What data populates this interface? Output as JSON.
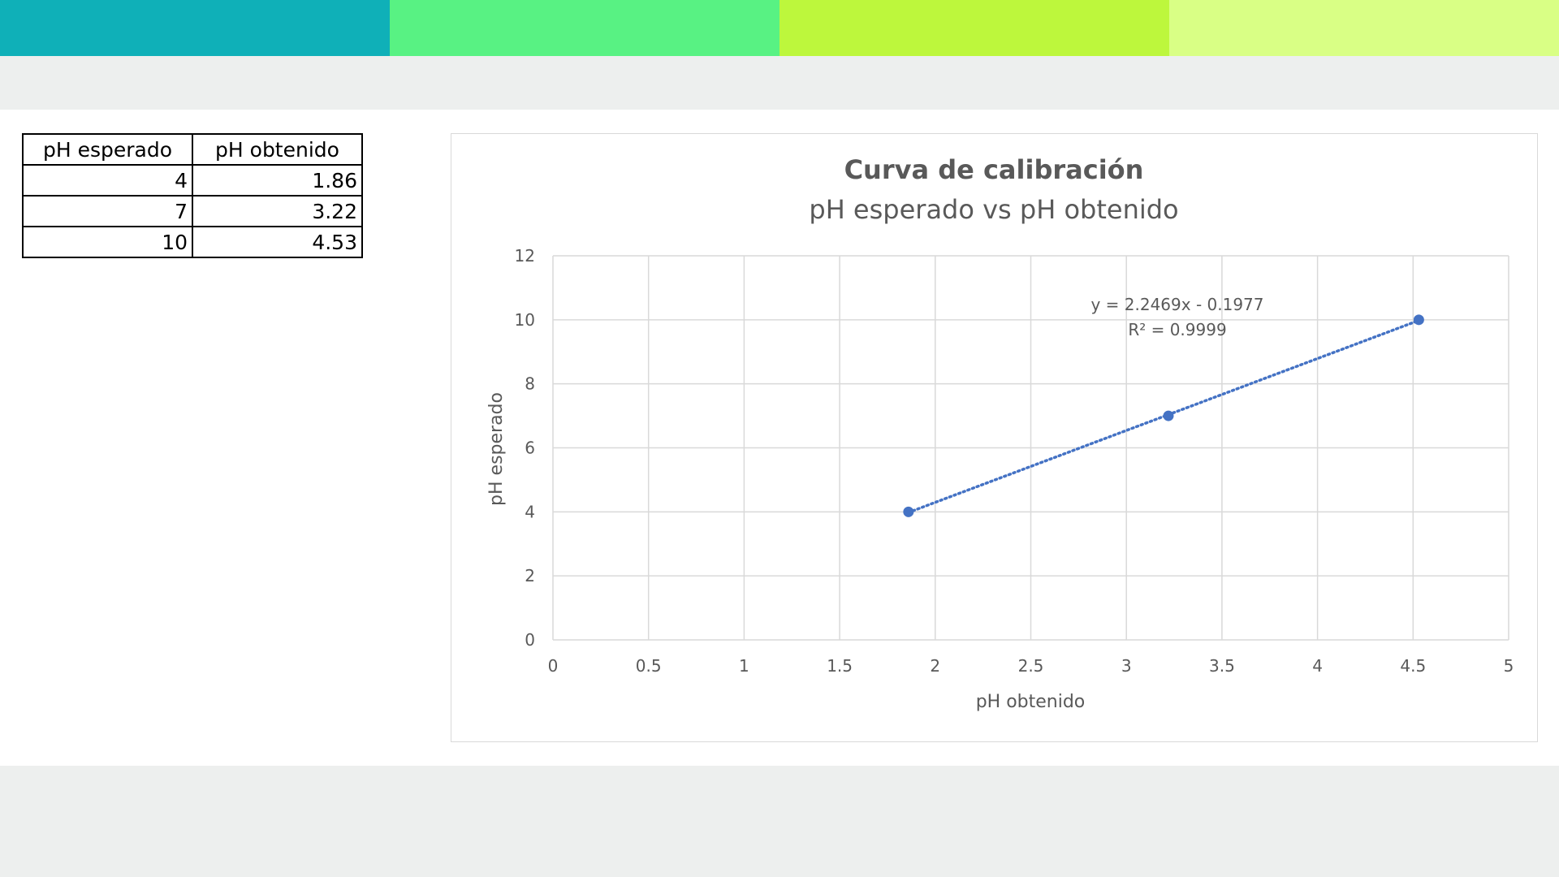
{
  "header": {
    "colors": [
      "#0fb0b8",
      "#58f283",
      "#bdf73c",
      "#d9ff85"
    ]
  },
  "table": {
    "headers": [
      "pH esperado",
      "pH obtenido"
    ],
    "rows": [
      [
        "4",
        "1.86"
      ],
      [
        "7",
        "3.22"
      ],
      [
        "10",
        "4.53"
      ]
    ]
  },
  "chart_data": {
    "type": "scatter",
    "title": "Curva de calibración",
    "subtitle": "pH esperado vs pH obtenido",
    "xlabel": "pH obtenido",
    "ylabel": "pH esperado",
    "xlim": [
      0,
      5
    ],
    "ylim": [
      0,
      12
    ],
    "xticks": [
      0,
      0.5,
      1,
      1.5,
      2,
      2.5,
      3,
      3.5,
      4,
      4.5,
      5
    ],
    "yticks": [
      0,
      2,
      4,
      6,
      8,
      10,
      12
    ],
    "xtick_labels": [
      "0",
      "0.5",
      "1",
      "1.5",
      "2",
      "2.5",
      "3",
      "3.5",
      "4",
      "4.5",
      "5"
    ],
    "ytick_labels": [
      "0",
      "2",
      "4",
      "6",
      "8",
      "10",
      "12"
    ],
    "grid": true,
    "series": [
      {
        "x": [
          1.86,
          3.22,
          4.53
        ],
        "y": [
          4,
          7,
          10
        ],
        "color": "#4472c4"
      }
    ],
    "trendline": {
      "type": "linear",
      "style": "dotted",
      "slope": 2.2469,
      "intercept": -0.1977,
      "equation": "y = 2.2469x - 0.1977",
      "r2": "R² = 0.9999"
    }
  }
}
